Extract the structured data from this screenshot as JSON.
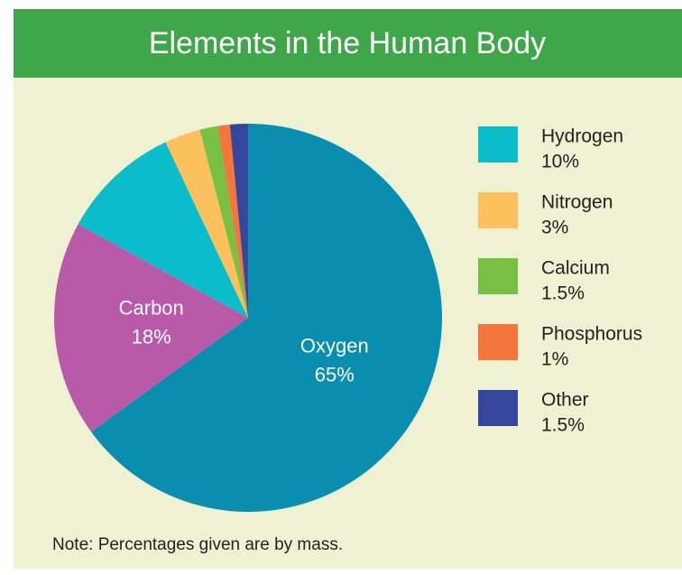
{
  "chart_data": {
    "type": "pie",
    "title": "Elements in the Human Body",
    "categories": [
      "Oxygen",
      "Carbon",
      "Hydrogen",
      "Nitrogen",
      "Calcium",
      "Phosphorus",
      "Other"
    ],
    "values": [
      65,
      18,
      10,
      3,
      1.5,
      1,
      1.5
    ],
    "value_labels": [
      "65%",
      "18%",
      "10%",
      "3%",
      "1.5%",
      "1%",
      "1.5%"
    ],
    "colors": [
      "#0a8eb0",
      "#b95aa8",
      "#0bbccb",
      "#fcc05c",
      "#78c043",
      "#f3773b",
      "#34479d"
    ],
    "note": "Note: Percentages given are by mass."
  }
}
